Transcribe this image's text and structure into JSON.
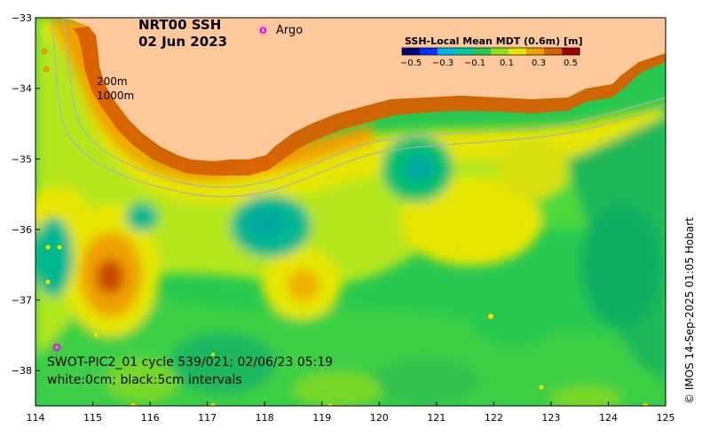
{
  "map": {
    "title_line1": "NRT00 SSH",
    "title_line2": "02 Jun 2023",
    "argo_marker": "o",
    "argo_label": "Argo",
    "contour_200": "200m",
    "contour_1000": "1000m",
    "swot_line": "SWOT-PIC2_01 cycle 539/021; 02/06/23 05:19",
    "intervals_line": "white:0cm; black:5cm intervals",
    "credit": "© IMOS 14-Sep-2025 01:05 Hobart"
  },
  "colorbar": {
    "title": "SSH-Local Mean MDT (0.6m) [m]",
    "ticks": [
      "-0.5",
      "-0.3",
      "-0.1",
      "0.1",
      "0.3",
      "0.5"
    ],
    "colors": [
      "#000080",
      "#0030ff",
      "#00b4e6",
      "#00c8a0",
      "#28c850",
      "#90e020",
      "#e6e600",
      "#f0a000",
      "#d86000",
      "#a00000"
    ]
  },
  "axes": {
    "x_ticks": [
      "114",
      "115",
      "116",
      "117",
      "118",
      "119",
      "120",
      "121",
      "122",
      "123",
      "124",
      "125"
    ],
    "y_ticks": [
      "-33",
      "-34",
      "-35",
      "-36",
      "-37",
      "-38"
    ],
    "lon_range": [
      114,
      125
    ],
    "lat_range": [
      -38.5,
      -33
    ]
  },
  "colors": {
    "land": "#fdc89a",
    "coast_band": "#d86000",
    "argo": "#ff00ff"
  }
}
